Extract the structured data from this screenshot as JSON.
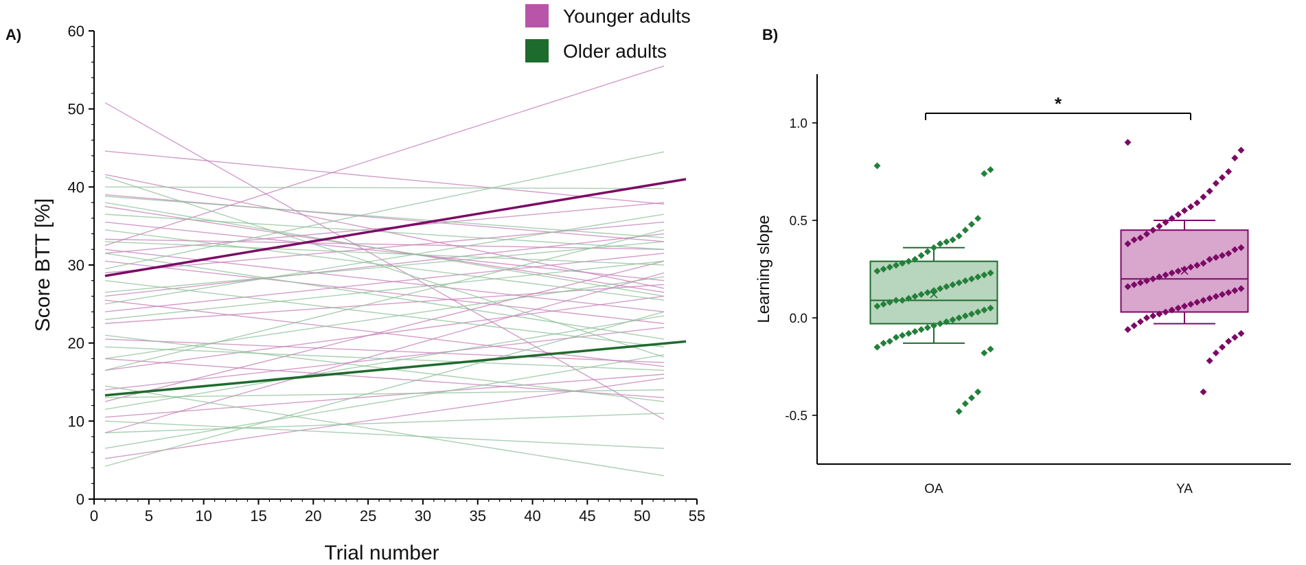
{
  "colors": {
    "younger": "#7b0a66",
    "younger_light": "#c47bb7",
    "younger_box": "#d9a6cd",
    "younger_legend": "#b855a8",
    "older": "#1e6b2e",
    "older_light": "#8cbf95",
    "older_box": "#b8d5bd",
    "older_point": "#23803a"
  },
  "panels": {
    "a_label": "A)",
    "b_label": "B)"
  },
  "chart_data": [
    {
      "id": "A",
      "type": "line",
      "xlabel": "Trial number",
      "ylabel": "Score BTT [%]",
      "xlim": [
        0,
        55
      ],
      "ylim": [
        0,
        60
      ],
      "xticks": [
        0,
        5,
        10,
        15,
        20,
        25,
        30,
        35,
        40,
        45,
        50,
        55
      ],
      "yticks": [
        0,
        10,
        20,
        30,
        40,
        50,
        60
      ],
      "legend": {
        "position": "top-right",
        "entries": [
          "Younger adults",
          "Older adults"
        ]
      },
      "group_fits": [
        {
          "name": "Younger adults",
          "x": [
            1,
            54
          ],
          "y": [
            28.6,
            41
          ]
        },
        {
          "name": "Older adults",
          "x": [
            1,
            54
          ],
          "y": [
            13.3,
            20.2
          ]
        }
      ],
      "individual_lines": {
        "younger": [
          [
            1,
            50.8,
            52,
            10.2
          ],
          [
            1,
            44.6,
            52,
            37.8
          ],
          [
            1,
            41.6,
            52,
            27.0
          ],
          [
            1,
            39.0,
            52,
            33.0
          ],
          [
            1,
            37.5,
            52,
            26.5
          ],
          [
            1,
            35.5,
            52,
            28.0
          ],
          [
            1,
            33.3,
            52,
            32.0
          ],
          [
            1,
            32.5,
            52,
            55.5
          ],
          [
            1,
            32.0,
            52,
            24.0
          ],
          [
            1,
            31.5,
            52,
            38.0
          ],
          [
            1,
            30.5,
            52,
            22.5
          ],
          [
            1,
            29.0,
            52,
            35.5
          ],
          [
            1,
            26.0,
            52,
            34.0
          ],
          [
            1,
            25.5,
            52,
            17.0
          ],
          [
            1,
            24.0,
            52,
            31.5
          ],
          [
            1,
            22.5,
            52,
            27.5
          ],
          [
            1,
            20.5,
            52,
            17.5
          ],
          [
            1,
            18.0,
            52,
            13.0
          ],
          [
            1,
            16.5,
            52,
            26.0
          ],
          [
            1,
            14.0,
            52,
            22.0
          ],
          [
            1,
            12.5,
            52,
            30.5
          ],
          [
            1,
            10.5,
            52,
            16.0
          ],
          [
            1,
            8.5,
            52,
            29.0
          ],
          [
            1,
            5.2,
            52,
            15.5
          ]
        ],
        "older": [
          [
            1,
            41.3,
            52,
            18.2
          ],
          [
            1,
            40.0,
            52,
            39.8
          ],
          [
            1,
            38.8,
            52,
            33.5
          ],
          [
            1,
            38.0,
            52,
            26.0
          ],
          [
            1,
            36.5,
            52,
            32.0
          ],
          [
            1,
            34.5,
            52,
            25.5
          ],
          [
            1,
            33.0,
            52,
            30.0
          ],
          [
            1,
            31.5,
            52,
            20.5
          ],
          [
            1,
            29.5,
            52,
            44.5
          ],
          [
            1,
            28.0,
            52,
            19.5
          ],
          [
            1,
            26.5,
            52,
            33.0
          ],
          [
            1,
            25.0,
            52,
            36.5
          ],
          [
            1,
            23.0,
            52,
            30.5
          ],
          [
            1,
            21.0,
            52,
            12.5
          ],
          [
            1,
            19.5,
            52,
            16.5
          ],
          [
            1,
            18.0,
            52,
            28.5
          ],
          [
            1,
            16.5,
            52,
            34.5
          ],
          [
            1,
            14.5,
            52,
            3.0
          ],
          [
            1,
            13.0,
            52,
            14.0
          ],
          [
            1,
            11.5,
            52,
            23.5
          ],
          [
            1,
            10.0,
            52,
            6.5
          ],
          [
            1,
            8.5,
            52,
            11.0
          ],
          [
            1,
            6.5,
            52,
            18.5
          ],
          [
            1,
            4.2,
            52,
            24.0
          ]
        ]
      }
    },
    {
      "id": "B",
      "type": "box",
      "xlabel": "",
      "ylabel": "Learning slope",
      "ylim": [
        -0.75,
        1.25
      ],
      "yticks": [
        -0.5,
        0.0,
        0.5,
        1.0
      ],
      "ytick_labels": [
        "-0.5",
        "0.0",
        "0.5",
        "1.0"
      ],
      "categories": [
        "OA",
        "YA"
      ],
      "significance": "*",
      "boxes": [
        {
          "name": "OA",
          "q1": -0.03,
          "median": 0.09,
          "q3": 0.29,
          "whisker_low": -0.13,
          "whisker_high": 0.36,
          "mean": 0.12
        },
        {
          "name": "YA",
          "q1": 0.03,
          "median": 0.2,
          "q3": 0.45,
          "whisker_low": -0.03,
          "whisker_high": 0.5,
          "mean": 0.24
        }
      ],
      "points": {
        "OA": [
          0.78,
          0.76,
          0.74,
          0.51,
          0.48,
          0.45,
          0.42,
          0.4,
          0.39,
          0.38,
          0.36,
          0.34,
          0.32,
          0.3,
          0.29,
          0.28,
          0.27,
          0.26,
          0.25,
          0.24,
          0.23,
          0.22,
          0.21,
          0.2,
          0.19,
          0.18,
          0.17,
          0.16,
          0.15,
          0.14,
          0.13,
          0.12,
          0.11,
          0.1,
          0.09,
          0.09,
          0.08,
          0.07,
          0.06,
          0.05,
          0.04,
          0.03,
          0.02,
          0.01,
          0.0,
          -0.01,
          -0.02,
          -0.03,
          -0.04,
          -0.05,
          -0.06,
          -0.07,
          -0.08,
          -0.09,
          -0.1,
          -0.12,
          -0.13,
          -0.15,
          -0.16,
          -0.18,
          -0.38,
          -0.41,
          -0.44,
          -0.48
        ],
        "YA": [
          0.9,
          0.86,
          0.82,
          0.75,
          0.72,
          0.69,
          0.65,
          0.62,
          0.59,
          0.57,
          0.55,
          0.53,
          0.51,
          0.49,
          0.47,
          0.45,
          0.43,
          0.41,
          0.4,
          0.38,
          0.36,
          0.35,
          0.33,
          0.32,
          0.31,
          0.3,
          0.28,
          0.27,
          0.26,
          0.25,
          0.24,
          0.23,
          0.22,
          0.21,
          0.2,
          0.19,
          0.18,
          0.17,
          0.16,
          0.15,
          0.14,
          0.13,
          0.12,
          0.11,
          0.1,
          0.09,
          0.08,
          0.07,
          0.06,
          0.05,
          0.04,
          0.03,
          0.02,
          0.01,
          0.0,
          -0.02,
          -0.04,
          -0.06,
          -0.08,
          -0.1,
          -0.12,
          -0.15,
          -0.18,
          -0.22,
          -0.38
        ]
      }
    }
  ]
}
